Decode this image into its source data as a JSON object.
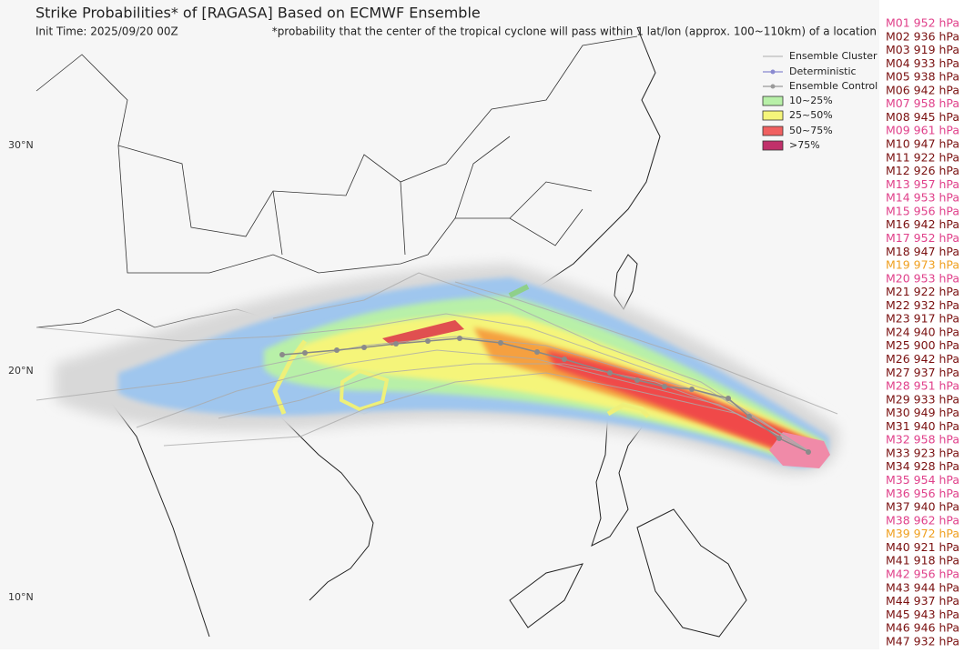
{
  "header": {
    "title": "Strike Probabilities* of [RAGASA] Based on ECMWF Ensemble",
    "init_time": "Init Time: 2025/09/20 00Z",
    "note": "*probability that the center of the tropical cyclone will pass within 1 lat/lon (approx. 100~110km) of a location"
  },
  "legend": [
    {
      "label": "Ensemble Cluster",
      "kind": "line",
      "color": "#bbbbbb"
    },
    {
      "label": "Deterministic",
      "kind": "marker",
      "color": "#8a8ad0"
    },
    {
      "label": "Ensemble Control",
      "kind": "marker",
      "color": "#9a9a9a"
    },
    {
      "label": "10~25%",
      "kind": "box",
      "color": "#b8f0a8"
    },
    {
      "label": "25~50%",
      "kind": "box",
      "color": "#f5f57a"
    },
    {
      "label": "50~75%",
      "kind": "box",
      "color": "#f06060"
    },
    {
      "label": ">75%",
      "kind": "box",
      "color": "#c0306a"
    }
  ],
  "lat_labels": [
    "30°N",
    "20°N",
    "10°N"
  ],
  "members": [
    {
      "label": "M01 952 hPa",
      "color": "#e0408a"
    },
    {
      "label": "M02 936 hPa",
      "color": "#7a1010"
    },
    {
      "label": "M03 919 hPa",
      "color": "#7a1010"
    },
    {
      "label": "M04 933 hPa",
      "color": "#7a1010"
    },
    {
      "label": "M05 938 hPa",
      "color": "#7a1010"
    },
    {
      "label": "M06 942 hPa",
      "color": "#7a1010"
    },
    {
      "label": "M07 958 hPa",
      "color": "#e0408a"
    },
    {
      "label": "M08 945 hPa",
      "color": "#7a1010"
    },
    {
      "label": "M09 961 hPa",
      "color": "#e0408a"
    },
    {
      "label": "M10 947 hPa",
      "color": "#7a1010"
    },
    {
      "label": "M11 922 hPa",
      "color": "#7a1010"
    },
    {
      "label": "M12 926 hPa",
      "color": "#7a1010"
    },
    {
      "label": "M13 957 hPa",
      "color": "#e0408a"
    },
    {
      "label": "M14 953 hPa",
      "color": "#e0408a"
    },
    {
      "label": "M15 956 hPa",
      "color": "#e0408a"
    },
    {
      "label": "M16 942 hPa",
      "color": "#7a1010"
    },
    {
      "label": "M17 952 hPa",
      "color": "#e0408a"
    },
    {
      "label": "M18 947 hPa",
      "color": "#7a1010"
    },
    {
      "label": "M19 973 hPa",
      "color": "#f0a020"
    },
    {
      "label": "M20 953 hPa",
      "color": "#e0408a"
    },
    {
      "label": "M21 922 hPa",
      "color": "#7a1010"
    },
    {
      "label": "M22 932 hPa",
      "color": "#7a1010"
    },
    {
      "label": "M23 917 hPa",
      "color": "#7a1010"
    },
    {
      "label": "M24 940 hPa",
      "color": "#7a1010"
    },
    {
      "label": "M25 900 hPa",
      "color": "#7a1010"
    },
    {
      "label": "M26 942 hPa",
      "color": "#7a1010"
    },
    {
      "label": "M27 937 hPa",
      "color": "#7a1010"
    },
    {
      "label": "M28 951 hPa",
      "color": "#e0408a"
    },
    {
      "label": "M29 933 hPa",
      "color": "#7a1010"
    },
    {
      "label": "M30 949 hPa",
      "color": "#7a1010"
    },
    {
      "label": "M31 940 hPa",
      "color": "#7a1010"
    },
    {
      "label": "M32 958 hPa",
      "color": "#e0408a"
    },
    {
      "label": "M33 923 hPa",
      "color": "#7a1010"
    },
    {
      "label": "M34 928 hPa",
      "color": "#7a1010"
    },
    {
      "label": "M35 954 hPa",
      "color": "#e0408a"
    },
    {
      "label": "M36 956 hPa",
      "color": "#e0408a"
    },
    {
      "label": "M37 940 hPa",
      "color": "#7a1010"
    },
    {
      "label": "M38 962 hPa",
      "color": "#e0408a"
    },
    {
      "label": "M39 972 hPa",
      "color": "#f0a020"
    },
    {
      "label": "M40 921 hPa",
      "color": "#7a1010"
    },
    {
      "label": "M41 918 hPa",
      "color": "#7a1010"
    },
    {
      "label": "M42 956 hPa",
      "color": "#e0408a"
    },
    {
      "label": "M43 944 hPa",
      "color": "#7a1010"
    },
    {
      "label": "M44 937 hPa",
      "color": "#7a1010"
    },
    {
      "label": "M45 943 hPa",
      "color": "#7a1010"
    },
    {
      "label": "M46 946 hPa",
      "color": "#7a1010"
    },
    {
      "label": "M47 932 hPa",
      "color": "#7a1010"
    }
  ]
}
